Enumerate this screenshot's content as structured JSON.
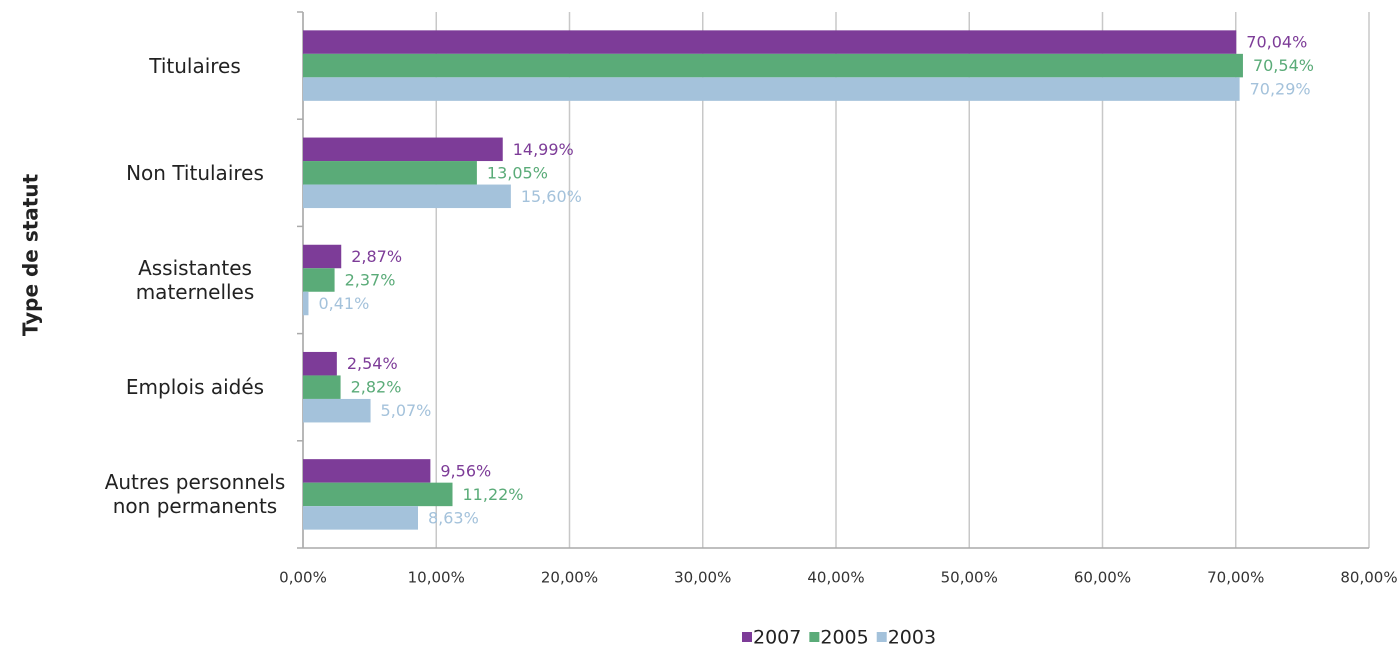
{
  "chart_data": {
    "type": "hbar",
    "y_axis_label": "Type de statut",
    "categories": [
      "Titulaires",
      "Non Titulaires",
      "Assistantes maternelles",
      "Emplois aidés",
      "Autres personnels non permanents"
    ],
    "series": [
      {
        "name": "2007",
        "color": "#7d3c98",
        "values": [
          70.04,
          14.99,
          2.87,
          2.54,
          9.56
        ],
        "value_labels": [
          "70,04%",
          "14,99%",
          "2,87%",
          "2,54%",
          "9,56%"
        ]
      },
      {
        "name": "2005",
        "color": "#5aab78",
        "values": [
          70.54,
          13.05,
          2.37,
          2.82,
          11.22
        ],
        "value_labels": [
          "70,54%",
          "13,05%",
          "2,37%",
          "2,82%",
          "11,22%"
        ]
      },
      {
        "name": "2003",
        "color": "#a4c2db",
        "values": [
          70.29,
          15.6,
          0.41,
          5.07,
          8.63
        ],
        "value_labels": [
          "70,29%",
          "15,60%",
          "0,41%",
          "5,07%",
          "8,63%"
        ]
      }
    ],
    "xlim": [
      0,
      80
    ],
    "xticks": [
      {
        "value": 0,
        "label": "0,00%"
      },
      {
        "value": 10,
        "label": "10,00%"
      },
      {
        "value": 20,
        "label": "20,00%"
      },
      {
        "value": 30,
        "label": "30,00%"
      },
      {
        "value": 40,
        "label": "40,00%"
      },
      {
        "value": 50,
        "label": "50,00%"
      },
      {
        "value": 60,
        "label": "60,00%"
      },
      {
        "value": 70,
        "label": "70,00%"
      },
      {
        "value": 80,
        "label": "80,00%"
      }
    ],
    "grid": true,
    "legend": "bottom"
  }
}
